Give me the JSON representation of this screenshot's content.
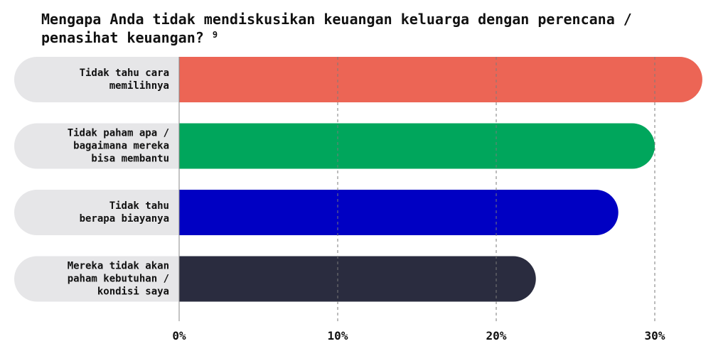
{
  "chart_data": {
    "type": "bar",
    "orientation": "horizontal",
    "title": "Mengapa Anda tidak mendiskusikan keuangan keluarga dengan perencana / penasihat keuangan?",
    "title_footnote": "9",
    "categories": [
      [
        "Tidak tahu cara",
        "memilihnya"
      ],
      [
        "Tidak paham apa /",
        "bagaimana mereka",
        "bisa membantu"
      ],
      [
        "Tidak tahu",
        "berapa biayanya"
      ],
      [
        "Mereka tidak akan",
        "paham kebutuhan /",
        "kondisi saya"
      ]
    ],
    "values": [
      33,
      30,
      27.7,
      22.5
    ],
    "colors": [
      "#ec6555",
      "#00a65c",
      "#0000c3",
      "#2a2c3f"
    ],
    "label_background": "#e6e6e8",
    "xlim": [
      0,
      33
    ],
    "xticks": [
      0,
      10,
      20,
      30
    ],
    "xtick_labels": [
      "0%",
      "10%",
      "20%",
      "30%"
    ],
    "grid": true,
    "xlabel": "",
    "ylabel": ""
  }
}
